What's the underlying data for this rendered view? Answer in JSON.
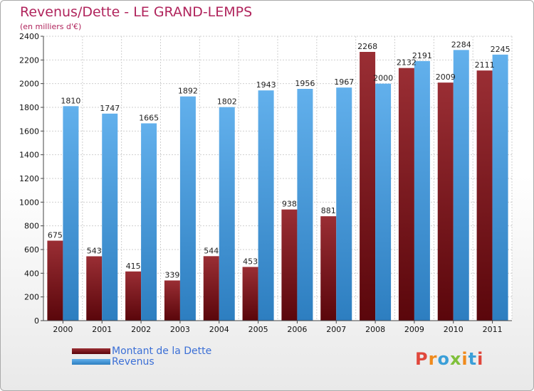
{
  "title": "Revenus/Dette - LE GRAND-LEMPS",
  "subtitle": "(en milliers d'€)",
  "logo": "Proxiti",
  "colors": {
    "debt": "#6b0d12",
    "debt_light": "#9a2e34",
    "revenue": "#5aa9e6",
    "revenue_dark": "#2e7fc0",
    "title": "#b0245c",
    "legend_text": "#3b6fd6"
  },
  "legend": [
    {
      "label": "Montant de la Dette",
      "series": "debt"
    },
    {
      "label": "Revenus",
      "series": "revenue"
    }
  ],
  "chart_data": {
    "type": "bar",
    "categories": [
      "2000",
      "2001",
      "2002",
      "2003",
      "2004",
      "2005",
      "2006",
      "2007",
      "2008",
      "2009",
      "2010",
      "2011"
    ],
    "series": [
      {
        "name": "Montant de la Dette",
        "values": [
          675,
          543,
          415,
          339,
          544,
          453,
          938,
          881,
          2268,
          2132,
          2009,
          2111
        ]
      },
      {
        "name": "Revenus",
        "values": [
          1810,
          1747,
          1665,
          1892,
          1802,
          1943,
          1956,
          1967,
          2000,
          2191,
          2284,
          2245
        ]
      }
    ],
    "ylim": [
      0,
      2400
    ],
    "yticks": [
      0,
      200,
      400,
      600,
      800,
      1000,
      1200,
      1400,
      1600,
      1800,
      2000,
      2200,
      2400
    ],
    "grid": true
  }
}
